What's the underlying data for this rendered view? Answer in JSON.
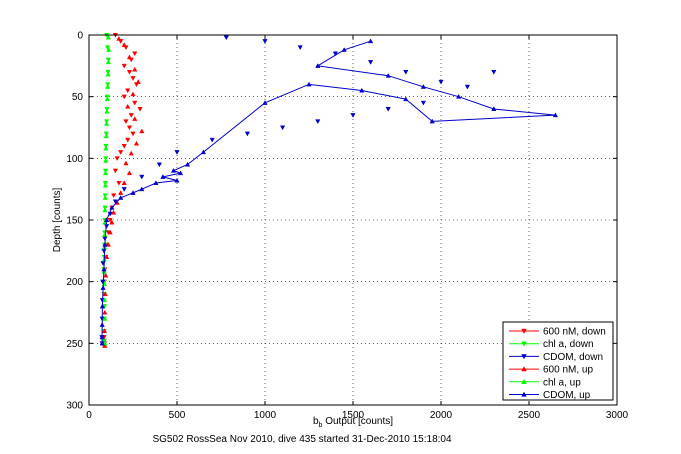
{
  "chart_data": {
    "type": "scatter",
    "title": "",
    "xlabel_main": "b",
    "xlabel_sub": "b",
    "xlabel_rest": " Output [counts]",
    "ylabel": "Depth [counts]",
    "xlim": [
      0,
      3000
    ],
    "ylim": [
      300,
      0
    ],
    "y_reversed": true,
    "xticks": [
      0,
      500,
      1000,
      1500,
      2000,
      2500,
      3000
    ],
    "yticks": [
      0,
      50,
      100,
      150,
      200,
      250,
      300
    ],
    "grid": true,
    "legend_position": "bottom-right",
    "caption": "SG502 RossSea Nov 2010, dive 435 started 31-Dec-2010 15:18:04",
    "series": [
      {
        "name": "600 nM, down",
        "color": "#ff0000",
        "marker": "triangle-down",
        "line": false,
        "x": [
          150,
          180,
          210,
          260,
          240,
          200,
          230,
          250,
          270,
          220,
          200,
          260,
          290,
          240,
          210,
          230,
          250,
          220,
          200,
          180,
          160,
          150,
          170,
          140,
          130,
          120,
          110,
          100,
          95,
          90,
          88,
          86,
          85,
          84,
          85,
          86,
          87,
          88,
          85
        ],
        "y": [
          0,
          5,
          10,
          15,
          20,
          25,
          30,
          35,
          40,
          45,
          50,
          55,
          60,
          65,
          70,
          75,
          80,
          85,
          90,
          95,
          100,
          110,
          120,
          130,
          140,
          150,
          160,
          170,
          180,
          190,
          200,
          210,
          220,
          230,
          240,
          245,
          248,
          250,
          252
        ]
      },
      {
        "name": "chl a, down",
        "color": "#00ff00",
        "marker": "triangle-down",
        "line": false,
        "x": [
          100,
          105,
          110,
          108,
          106,
          104,
          102,
          100,
          98,
          96,
          95,
          94,
          93,
          92,
          91,
          90,
          89,
          88,
          87,
          86,
          86,
          87,
          88,
          87,
          86,
          86,
          87
        ],
        "y": [
          0,
          10,
          20,
          30,
          40,
          50,
          60,
          70,
          80,
          90,
          100,
          110,
          120,
          130,
          140,
          150,
          160,
          170,
          180,
          190,
          200,
          210,
          220,
          230,
          240,
          248,
          252
        ]
      },
      {
        "name": "CDOM, down",
        "color": "#0000cc",
        "marker": "triangle-down",
        "line": false,
        "x": [
          780,
          1000,
          1200,
          1400,
          1600,
          1800,
          2000,
          2150,
          2300,
          1900,
          1700,
          1500,
          1300,
          1100,
          900,
          700,
          500,
          400,
          300,
          200,
          150,
          120,
          100,
          90,
          85,
          80,
          78,
          76,
          75,
          74,
          75
        ],
        "y": [
          2,
          5,
          10,
          15,
          22,
          30,
          38,
          42,
          30,
          55,
          60,
          65,
          70,
          75,
          80,
          85,
          95,
          105,
          115,
          125,
          135,
          145,
          155,
          165,
          175,
          185,
          200,
          215,
          230,
          245,
          250
        ]
      },
      {
        "name": "600 nM, up",
        "color": "#ff0000",
        "marker": "triangle-up",
        "line": false,
        "x": [
          170,
          200,
          230,
          260,
          280,
          250,
          220,
          260,
          300,
          270,
          240,
          210,
          230,
          200,
          180,
          160,
          140,
          130,
          120,
          110,
          100,
          95,
          92,
          90,
          88,
          90
        ],
        "y": [
          3,
          8,
          18,
          28,
          38,
          48,
          58,
          68,
          78,
          88,
          96,
          104,
          112,
          120,
          128,
          136,
          144,
          152,
          160,
          170,
          180,
          195,
          210,
          225,
          240,
          252
        ]
      },
      {
        "name": "chl a, up",
        "color": "#00ff00",
        "marker": "triangle-up",
        "line": false,
        "x": [
          110,
          112,
          110,
          108,
          106,
          104,
          102,
          100,
          98,
          96,
          95,
          94,
          93,
          92,
          91,
          90,
          89,
          88,
          88,
          87,
          87,
          88,
          89,
          90
        ],
        "y": [
          2,
          12,
          22,
          32,
          42,
          52,
          62,
          72,
          82,
          92,
          102,
          112,
          122,
          132,
          142,
          152,
          162,
          172,
          182,
          192,
          202,
          215,
          230,
          250
        ]
      },
      {
        "name": "CDOM, up",
        "color": "#0000cc",
        "marker": "triangle-up",
        "line": true,
        "x": [
          1600,
          1450,
          1300,
          1700,
          1900,
          2100,
          2300,
          2650,
          1950,
          1800,
          1550,
          1250,
          1000,
          650,
          560,
          480,
          520,
          420,
          500,
          380,
          300,
          250,
          180,
          130,
          100,
          90,
          85,
          80,
          76,
          75,
          74,
          75
        ],
        "y": [
          5,
          12,
          25,
          33,
          42,
          50,
          60,
          65,
          70,
          52,
          45,
          40,
          55,
          95,
          105,
          110,
          112,
          115,
          118,
          120,
          125,
          128,
          132,
          140,
          150,
          170,
          190,
          205,
          220,
          235,
          245,
          250
        ]
      }
    ]
  }
}
